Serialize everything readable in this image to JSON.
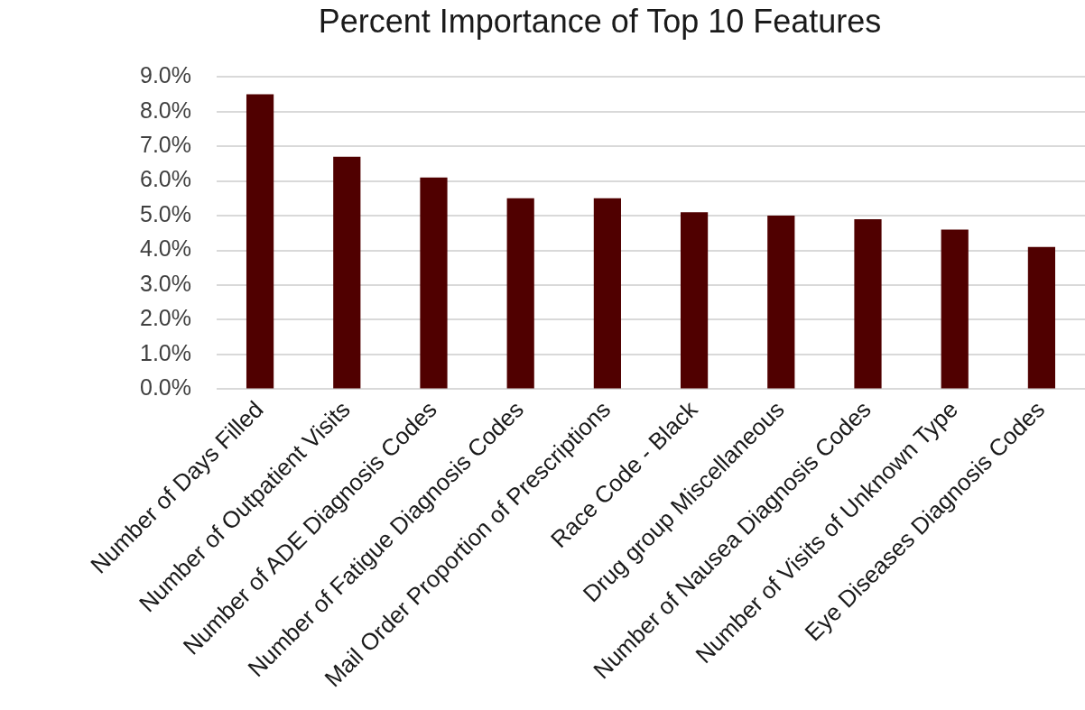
{
  "chart_data": {
    "type": "bar",
    "title": "Percent Importance of Top 10 Features",
    "categories": [
      "Number of Days Filled",
      "Number of Outpatient Visits",
      "Number of ADE Diagnosis Codes",
      "Number of Fatigue Diagnosis Codes",
      "Mail Order Proportion of Prescriptions",
      "Race Code - Black",
      "Drug group Miscellaneous",
      "Number of Nausea Diagnosis Codes",
      "Number of Visits of Unknown Type",
      "Eye Diseases Diagnosis Codes"
    ],
    "values": [
      8.5,
      6.7,
      6.1,
      5.5,
      5.5,
      5.1,
      5.0,
      4.9,
      4.6,
      4.1
    ],
    "color": "#500000",
    "ylim": [
      0,
      9
    ],
    "yticks": [
      {
        "value": 0,
        "label": "0.0%"
      },
      {
        "value": 1,
        "label": "1.0%"
      },
      {
        "value": 2,
        "label": "2.0%"
      },
      {
        "value": 3,
        "label": "3.0%"
      },
      {
        "value": 4,
        "label": "4.0%"
      },
      {
        "value": 5,
        "label": "5.0%"
      },
      {
        "value": 6,
        "label": "6.0%"
      },
      {
        "value": 7,
        "label": "7.0%"
      },
      {
        "value": 8,
        "label": "8.0%"
      },
      {
        "value": 9,
        "label": "9.0%"
      }
    ],
    "grid": "y"
  }
}
